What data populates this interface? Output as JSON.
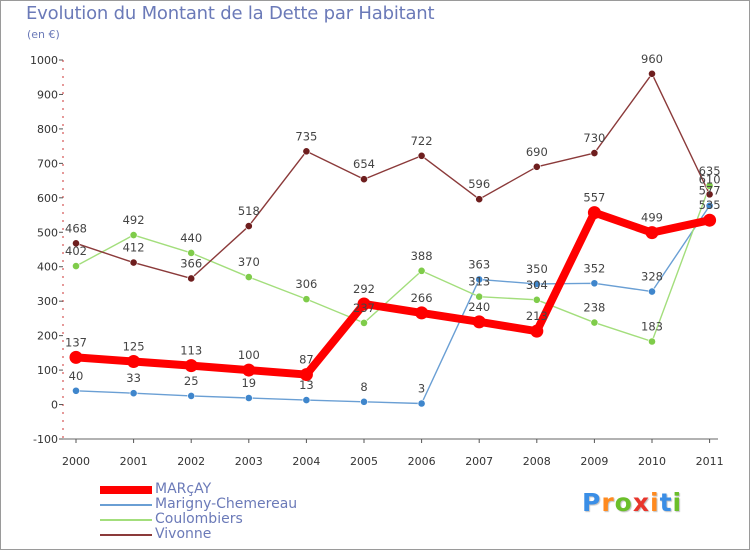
{
  "header": {
    "title": "Evolution du Montant de la Dette par Habitant",
    "subtitle": "(en €)"
  },
  "logo": {
    "letters": [
      "P",
      "r",
      "o",
      "x",
      "i",
      "t",
      "i"
    ],
    "colors": [
      "#3a8ee6",
      "#ff8a1f",
      "#6bbf2a",
      "#e8352b",
      "#ff8a1f",
      "#3a8ee6",
      "#6bbf2a"
    ]
  },
  "chart_data": {
    "type": "line",
    "x": [
      "2000",
      "2001",
      "2002",
      "2003",
      "2004",
      "2005",
      "2006",
      "2007",
      "2008",
      "2009",
      "2010",
      "2011"
    ],
    "ylim": [
      -100,
      1000
    ],
    "yticks": [
      "-100",
      "0",
      "100",
      "200",
      "300",
      "400",
      "500",
      "600",
      "700",
      "800",
      "900",
      "1000"
    ],
    "grid": false,
    "legend_position": "bottom-left",
    "series": [
      {
        "name": "MARçAY",
        "color": "#ff0000",
        "marker_color": "#ff0000",
        "bold": true,
        "values": [
          137,
          125,
          113,
          100,
          87,
          292,
          266,
          240,
          213,
          557,
          499,
          535
        ],
        "labels": [
          "137",
          "125",
          "113",
          "100",
          "87",
          "292",
          "266",
          "240",
          "213",
          "557",
          "499",
          "535"
        ]
      },
      {
        "name": "Marigny-Chemereau",
        "color": "#6a9fd4",
        "marker_color": "#3f86cc",
        "bold": false,
        "values": [
          40,
          33,
          25,
          19,
          13,
          8,
          3,
          363,
          350,
          352,
          328,
          577
        ],
        "labels": [
          "40",
          "33",
          "25",
          "19",
          "13",
          "8",
          "3",
          "363",
          "350",
          "352",
          "328",
          "577"
        ]
      },
      {
        "name": "Coulombiers",
        "color": "#a3de7c",
        "marker_color": "#7fcc4a",
        "bold": false,
        "values": [
          402,
          492,
          440,
          370,
          306,
          237,
          388,
          313,
          304,
          238,
          183,
          635
        ],
        "labels": [
          "402",
          "492",
          "440",
          "370",
          "306",
          "237",
          "388",
          "313",
          "304",
          "238",
          "183",
          "635"
        ]
      },
      {
        "name": "Vivonne",
        "color": "#8b3a3a",
        "marker_color": "#6e1e1e",
        "bold": false,
        "values": [
          468,
          412,
          366,
          518,
          735,
          654,
          722,
          596,
          690,
          730,
          960,
          610
        ],
        "labels": [
          "468",
          "412",
          "366",
          "518",
          "735",
          "654",
          "722",
          "596",
          "690",
          "730",
          "960",
          "610"
        ]
      }
    ]
  }
}
